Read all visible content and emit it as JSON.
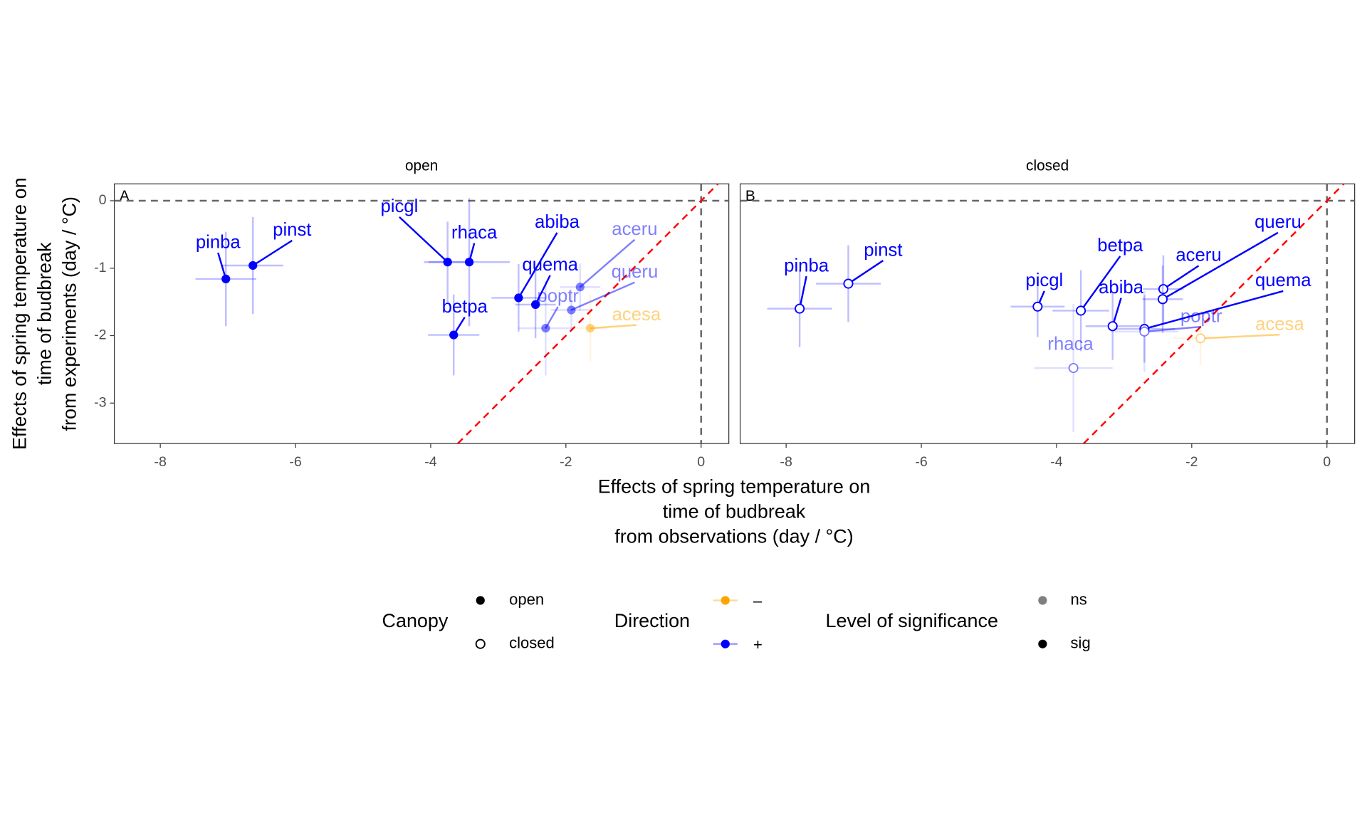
{
  "chart_data": {
    "type": "scatter",
    "xlabel": [
      "Effects of spring temperature on",
      "time of budbreak",
      "from observations (day / °C)"
    ],
    "ylabel": [
      "Effects of spring temperature on",
      "time of budbreak",
      "from experiments (day / °C)"
    ],
    "xlim": [
      -8.68,
      0.41
    ],
    "ylim": [
      -3.6,
      0.25
    ],
    "xticks": [
      -8,
      -6,
      -4,
      -2,
      0
    ],
    "yticks": [
      0,
      -1,
      -2,
      -3
    ],
    "direction_colors": {
      "–": "#ffa500",
      "+": "#0000ff"
    },
    "significance_alpha": {
      "ns": 0.5,
      "sig": 1
    },
    "panels": [
      {
        "title": "open",
        "tag": "A",
        "shape": "filled",
        "points": [
          {
            "label": "pinba",
            "x": -7.03,
            "y": -1.16,
            "xerr": 0.45,
            "yerr": 0.7,
            "direction": "+",
            "significance": "sig"
          },
          {
            "label": "pinst",
            "x": -6.63,
            "y": -0.96,
            "xerr": 0.45,
            "yerr": 0.72,
            "direction": "+",
            "significance": "sig"
          },
          {
            "label": "picgl",
            "x": -3.75,
            "y": -0.91,
            "xerr": 0.35,
            "yerr": 0.6,
            "direction": "+",
            "significance": "sig"
          },
          {
            "label": "rhaca",
            "x": -3.43,
            "y": -0.91,
            "xerr": 0.6,
            "yerr": 0.95,
            "direction": "+",
            "significance": "sig"
          },
          {
            "label": "abiba",
            "x": -2.7,
            "y": -1.44,
            "xerr": 0.4,
            "yerr": 0.5,
            "direction": "+",
            "significance": "sig"
          },
          {
            "label": "quema",
            "x": -2.45,
            "y": -1.54,
            "xerr": 0.3,
            "yerr": 0.5,
            "direction": "+",
            "significance": "sig"
          },
          {
            "label": "betpa",
            "x": -3.66,
            "y": -1.99,
            "xerr": 0.38,
            "yerr": 0.6,
            "direction": "+",
            "significance": "sig"
          },
          {
            "label": "aceru",
            "x": -1.79,
            "y": -1.28,
            "xerr": 0.3,
            "yerr": 0.35,
            "direction": "+",
            "significance": "ns"
          },
          {
            "label": "queru",
            "x": -1.92,
            "y": -1.62,
            "xerr": 0.3,
            "yerr": 0.3,
            "direction": "+",
            "significance": "ns"
          },
          {
            "label": "poptr",
            "x": -2.3,
            "y": -1.89,
            "xerr": 0.4,
            "yerr": 0.7,
            "direction": "+",
            "significance": "ns"
          },
          {
            "label": "acesa",
            "x": -1.64,
            "y": -1.89,
            "xerr": 0.25,
            "yerr": 0.5,
            "direction": "–",
            "significance": "ns"
          }
        ]
      },
      {
        "title": "closed",
        "tag": "B",
        "shape": "hollow",
        "points": [
          {
            "label": "pinba",
            "x": -7.8,
            "y": -1.6,
            "xerr": 0.48,
            "yerr": 0.57,
            "direction": "+",
            "significance": "sig"
          },
          {
            "label": "pinst",
            "x": -7.08,
            "y": -1.23,
            "xerr": 0.48,
            "yerr": 0.57,
            "direction": "+",
            "significance": "sig"
          },
          {
            "label": "picgl",
            "x": -4.28,
            "y": -1.57,
            "xerr": 0.4,
            "yerr": 0.45,
            "direction": "+",
            "significance": "sig"
          },
          {
            "label": "betpa",
            "x": -3.64,
            "y": -1.63,
            "xerr": 0.42,
            "yerr": 0.6,
            "direction": "+",
            "significance": "sig"
          },
          {
            "label": "abiba",
            "x": -3.17,
            "y": -1.86,
            "xerr": 0.4,
            "yerr": 0.5,
            "direction": "+",
            "significance": "sig"
          },
          {
            "label": "aceru",
            "x": -2.42,
            "y": -1.31,
            "xerr": 0.3,
            "yerr": 0.5,
            "direction": "+",
            "significance": "sig"
          },
          {
            "label": "queru",
            "x": -2.43,
            "y": -1.46,
            "xerr": 0.3,
            "yerr": 0.5,
            "direction": "+",
            "significance": "sig"
          },
          {
            "label": "quema",
            "x": -2.7,
            "y": -1.9,
            "xerr": 0.45,
            "yerr": 0.5,
            "direction": "+",
            "significance": "sig"
          },
          {
            "label": "poptr",
            "x": -2.7,
            "y": -1.94,
            "xerr": 0.5,
            "yerr": 0.6,
            "direction": "+",
            "significance": "ns"
          },
          {
            "label": "rhaca",
            "x": -3.75,
            "y": -2.48,
            "xerr": 0.58,
            "yerr": 0.95,
            "direction": "+",
            "significance": "ns"
          },
          {
            "label": "acesa",
            "x": -1.87,
            "y": -2.04,
            "xerr": 0.4,
            "yerr": 0.4,
            "direction": "–",
            "significance": "ns"
          }
        ]
      }
    ],
    "legend": {
      "canopy": {
        "title": "Canopy",
        "items": [
          "open",
          "closed"
        ]
      },
      "direction": {
        "title": "Direction",
        "items": [
          "–",
          "+"
        ]
      },
      "significance": {
        "title": "Level of significance",
        "items": [
          "ns",
          "sig"
        ]
      }
    }
  }
}
